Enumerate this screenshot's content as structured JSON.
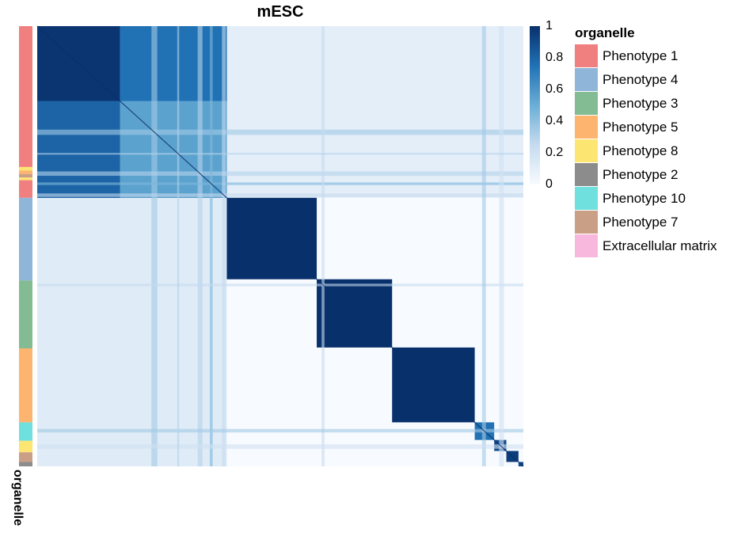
{
  "chart_data": {
    "type": "heatmap",
    "title": "mESC",
    "colorscale": {
      "min": 0,
      "max": 1,
      "colors": [
        "#f7fbff",
        "#c6dbef",
        "#6baed6",
        "#2171b5",
        "#08306b"
      ],
      "ticks": [
        "0",
        "0.2",
        "0.4",
        "0.6",
        "0.8",
        "1"
      ]
    },
    "annotation_label": "organelle",
    "legend": {
      "title": "organelle",
      "entries": [
        {
          "name": "Phenotype 1",
          "color": "#f08080"
        },
        {
          "name": "Phenotype 4",
          "color": "#8fb5d8"
        },
        {
          "name": "Phenotype 3",
          "color": "#83bb92"
        },
        {
          "name": "Phenotype 5",
          "color": "#fdb46f"
        },
        {
          "name": "Phenotype 8",
          "color": "#fde572"
        },
        {
          "name": "Phenotype 2",
          "color": "#8c8c8c"
        },
        {
          "name": "Phenotype 10",
          "color": "#6fe0de"
        },
        {
          "name": "Phenotype 7",
          "color": "#c99f86"
        },
        {
          "name": "Extracellular matrix",
          "color": "#f8b8dd"
        }
      ]
    },
    "clusters": [
      {
        "group": "Phenotype 1",
        "start": 0.0,
        "end": 0.39,
        "within": 0.98
      },
      {
        "group": "Phenotype 4",
        "start": 0.39,
        "end": 0.575,
        "within": 1.0
      },
      {
        "group": "Phenotype 3",
        "start": 0.575,
        "end": 0.73,
        "within": 1.0
      },
      {
        "group": "Phenotype 5",
        "start": 0.73,
        "end": 0.9,
        "within": 1.0
      },
      {
        "group": "Phenotype 10",
        "start": 0.9,
        "end": 0.94,
        "within": 0.75
      },
      {
        "group": "Phenotype 8",
        "start": 0.94,
        "end": 0.965,
        "within": 0.9
      },
      {
        "group": "Phenotype 7",
        "start": 0.965,
        "end": 0.99,
        "within": 0.95
      },
      {
        "group": "Phenotype 2",
        "start": 0.99,
        "end": 1.0,
        "within": 0.9
      }
    ],
    "annotation_bar": [
      {
        "group": "Phenotype 1",
        "start": 0.0,
        "end": 0.32
      },
      {
        "group": "Phenotype 8",
        "start": 0.32,
        "end": 0.328
      },
      {
        "group": "Phenotype 5",
        "start": 0.328,
        "end": 0.336
      },
      {
        "group": "Phenotype 7",
        "start": 0.336,
        "end": 0.344
      },
      {
        "group": "Phenotype 8",
        "start": 0.344,
        "end": 0.35
      },
      {
        "group": "Phenotype 1",
        "start": 0.35,
        "end": 0.39
      },
      {
        "group": "Phenotype 4",
        "start": 0.39,
        "end": 0.578
      },
      {
        "group": "Phenotype 3",
        "start": 0.578,
        "end": 0.732
      },
      {
        "group": "Phenotype 5",
        "start": 0.732,
        "end": 0.9
      },
      {
        "group": "Phenotype 10",
        "start": 0.9,
        "end": 0.942
      },
      {
        "group": "Phenotype 8",
        "start": 0.942,
        "end": 0.968
      },
      {
        "group": "Phenotype 7",
        "start": 0.968,
        "end": 0.99
      },
      {
        "group": "Phenotype 2",
        "start": 0.99,
        "end": 1.0
      }
    ],
    "stripes": [
      {
        "pos": 0.235,
        "width": 0.012,
        "value": 0.35
      },
      {
        "pos": 0.33,
        "width": 0.01,
        "value": 0.3
      },
      {
        "pos": 0.355,
        "width": 0.006,
        "value": 0.45
      },
      {
        "pos": 0.38,
        "width": 0.008,
        "value": 0.25
      },
      {
        "pos": 0.585,
        "width": 0.006,
        "value": 0.25
      },
      {
        "pos": 0.915,
        "width": 0.008,
        "value": 0.35
      },
      {
        "pos": 0.95,
        "width": 0.01,
        "value": 0.2
      },
      {
        "pos": 0.288,
        "width": 0.004,
        "value": 0.3
      }
    ]
  }
}
